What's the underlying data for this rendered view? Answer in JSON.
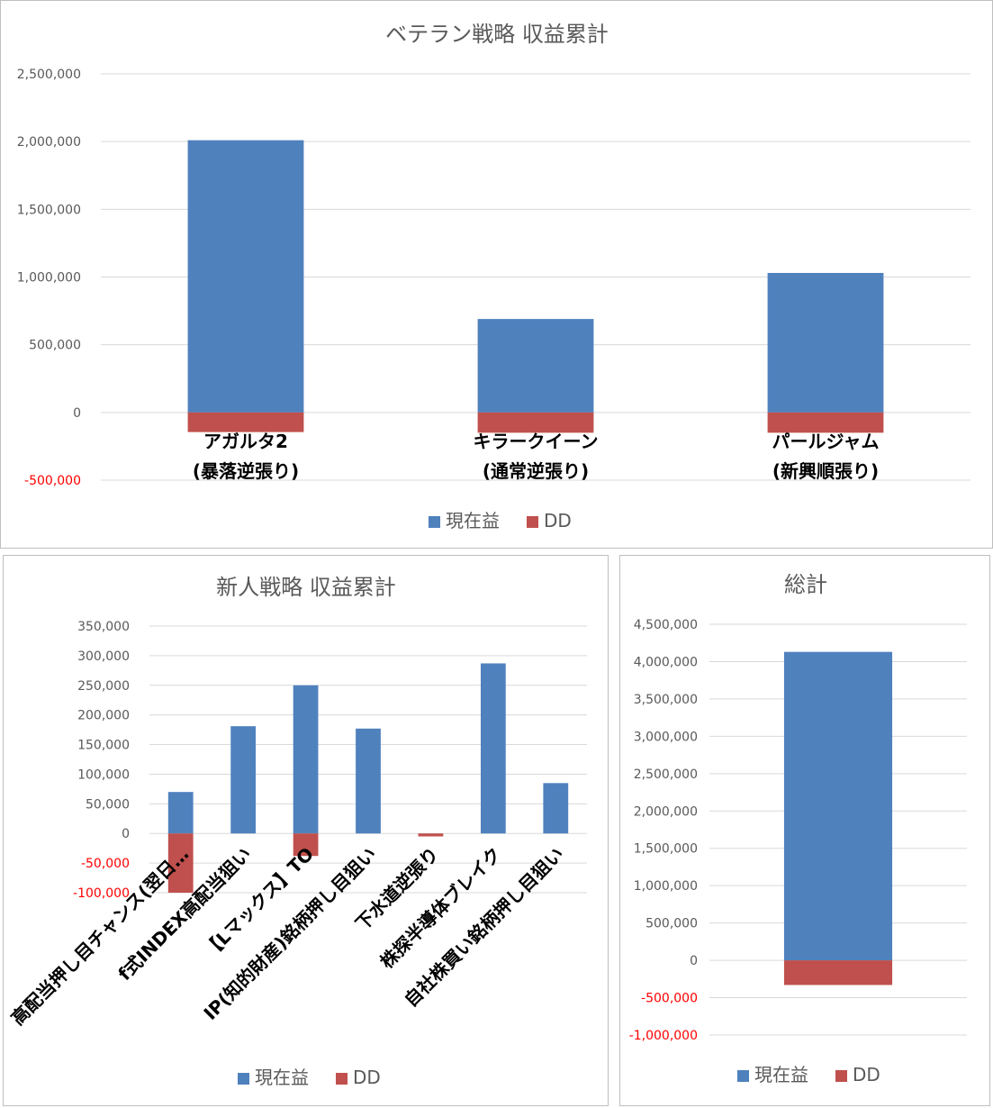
{
  "colors": {
    "current": "#4f81bd",
    "dd": "#c0504d",
    "grid": "#d9d9d9",
    "text": "#595959",
    "negative_tick": "#ff0000"
  },
  "legend": {
    "current": "現在益",
    "dd": "DD"
  },
  "chart_data": [
    {
      "type": "bar",
      "title": "ベテラン戦略 収益累計",
      "categories": [
        [
          "アガルタ2",
          "(暴落逆張り)"
        ],
        [
          "キラークイーン",
          "(通常逆張り)"
        ],
        [
          "パールジャム",
          "(新興順張り)"
        ]
      ],
      "series": [
        {
          "name": "現在益",
          "values": [
            2010000,
            690000,
            1030000
          ]
        },
        {
          "name": "DD",
          "values": [
            -145000,
            -150000,
            -150000
          ]
        }
      ],
      "ylim": [
        -500000,
        2500000
      ],
      "yticks": [
        2500000,
        2000000,
        1500000,
        1000000,
        500000,
        0,
        -500000
      ],
      "grid": true,
      "legend_position": "bottom"
    },
    {
      "type": "bar",
      "title": "新人戦略 収益累計",
      "categories": [
        "高配当押し目チャンス(翌日…",
        "f式INDEX高配当狙い",
        "【Lマックス】TO",
        "IP(知的財産)銘柄押し目狙い",
        "下水道逆張り",
        "株探半導体ブレイク",
        "自社株買い銘柄押し目狙い"
      ],
      "series": [
        {
          "name": "現在益",
          "values": [
            70000,
            181000,
            250000,
            177000,
            0,
            287000,
            85000
          ]
        },
        {
          "name": "DD",
          "values": [
            -100000,
            0,
            -38000,
            0,
            -5000,
            0,
            0
          ]
        }
      ],
      "ylim": [
        -100000,
        350000
      ],
      "yticks": [
        350000,
        300000,
        250000,
        200000,
        150000,
        100000,
        50000,
        0,
        -50000,
        -100000
      ],
      "grid": true,
      "legend_position": "bottom"
    },
    {
      "type": "bar",
      "title": "総計",
      "categories": [
        ""
      ],
      "series": [
        {
          "name": "現在益",
          "values": [
            4130000
          ]
        },
        {
          "name": "DD",
          "values": [
            -330000
          ]
        }
      ],
      "ylim": [
        -1000000,
        4500000
      ],
      "yticks": [
        4500000,
        4000000,
        3500000,
        3000000,
        2500000,
        2000000,
        1500000,
        1000000,
        500000,
        0,
        -500000,
        -1000000
      ],
      "grid": true,
      "legend_position": "bottom"
    }
  ]
}
